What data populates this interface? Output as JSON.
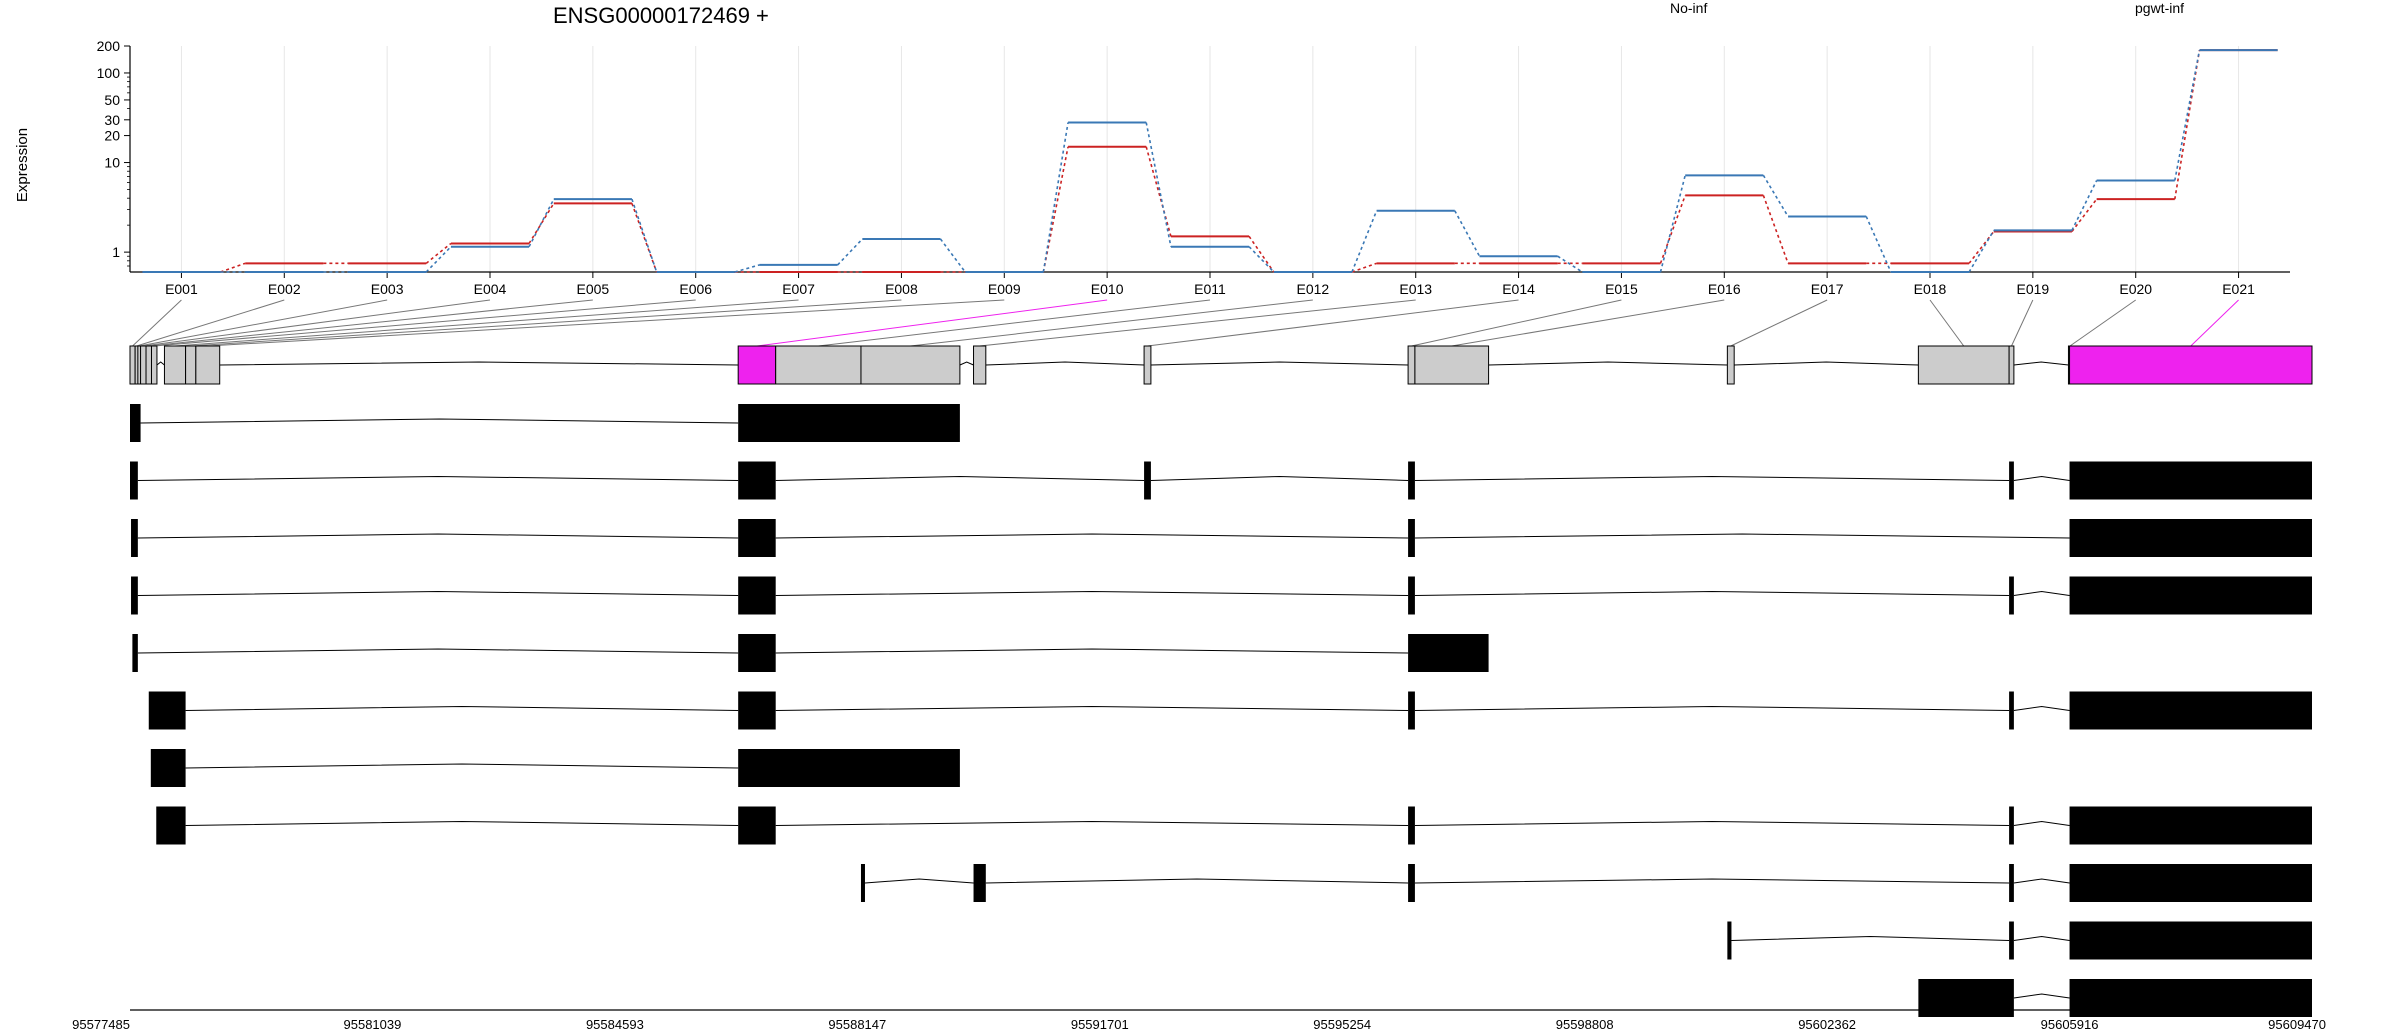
{
  "chart_data": {
    "type": "line",
    "title": "ENSG00000172469 +",
    "ylabel": "Expression",
    "y_scale": "log",
    "ylim": [
      0.6,
      200
    ],
    "y_ticks": [
      {
        "value": 1,
        "label": "1"
      },
      {
        "value": 10,
        "label": "10"
      },
      {
        "value": 20,
        "label": "20"
      },
      {
        "value": 30,
        "label": "30"
      },
      {
        "value": 50,
        "label": "50"
      },
      {
        "value": 100,
        "label": "100"
      },
      {
        "value": 200,
        "label": "200"
      }
    ],
    "categories": [
      "E001",
      "E002",
      "E003",
      "E004",
      "E005",
      "E006",
      "E007",
      "E008",
      "E009",
      "E010",
      "E011",
      "E012",
      "E013",
      "E014",
      "E015",
      "E016",
      "E017",
      "E018",
      "E019",
      "E020",
      "E021"
    ],
    "series": [
      {
        "name": "No-inf",
        "color": "#cc2222",
        "values": [
          0.6,
          0.75,
          0.75,
          1.25,
          3.5,
          0.6,
          0.6,
          0.6,
          0.6,
          15,
          1.5,
          0.6,
          0.75,
          0.75,
          0.75,
          4.3,
          0.75,
          0.75,
          1.7,
          3.9,
          180
        ]
      },
      {
        "name": "pgwt-inf",
        "color": "#3a78b5",
        "values": [
          0.6,
          0.6,
          0.6,
          1.15,
          3.9,
          0.6,
          0.72,
          1.4,
          0.6,
          28,
          1.15,
          0.6,
          2.9,
          0.9,
          0.6,
          7.2,
          2.5,
          0.6,
          1.75,
          6.3,
          180
        ]
      }
    ],
    "genomic_axis": {
      "start": 95577485,
      "end": 95609470,
      "tick_labels": [
        "95577485",
        "95581039",
        "95584593",
        "95588147",
        "95591701",
        "95595254",
        "95598808",
        "95602362",
        "95605916",
        "95609470"
      ]
    },
    "exon_bins": [
      {
        "id": "E001",
        "start": 95577485,
        "end": 95577560,
        "highlight": false
      },
      {
        "id": "E002",
        "start": 95577560,
        "end": 95577600,
        "highlight": false
      },
      {
        "id": "E003",
        "start": 95577600,
        "end": 95577640,
        "highlight": false
      },
      {
        "id": "E004",
        "start": 95577640,
        "end": 95577720,
        "highlight": false
      },
      {
        "id": "E005",
        "start": 95577720,
        "end": 95577800,
        "highlight": false
      },
      {
        "id": "E006",
        "start": 95577800,
        "end": 95577880,
        "highlight": false
      },
      {
        "id": "E007",
        "start": 95577990,
        "end": 95578300,
        "highlight": false
      },
      {
        "id": "E008",
        "start": 95578300,
        "end": 95578450,
        "highlight": false
      },
      {
        "id": "E009",
        "start": 95578450,
        "end": 95578800,
        "highlight": false
      },
      {
        "id": "E010",
        "start": 95586400,
        "end": 95586950,
        "highlight": true
      },
      {
        "id": "E011",
        "start": 95586950,
        "end": 95588200,
        "highlight": false
      },
      {
        "id": "E012",
        "start": 95588200,
        "end": 95589650,
        "highlight": false
      },
      {
        "id": "E013",
        "start": 95589850,
        "end": 95590030,
        "highlight": false
      },
      {
        "id": "E014",
        "start": 95592350,
        "end": 95592450,
        "highlight": false
      },
      {
        "id": "E015",
        "start": 95596220,
        "end": 95596320,
        "highlight": false
      },
      {
        "id": "E016",
        "start": 95596320,
        "end": 95597400,
        "highlight": false
      },
      {
        "id": "E017",
        "start": 95600900,
        "end": 95601000,
        "highlight": false
      },
      {
        "id": "E018",
        "start": 95603700,
        "end": 95605030,
        "highlight": false
      },
      {
        "id": "E019",
        "start": 95605030,
        "end": 95605100,
        "highlight": false
      },
      {
        "id": "E020",
        "start": 95605900,
        "end": 95605916,
        "highlight": false
      },
      {
        "id": "E021",
        "start": 95605916,
        "end": 95609470,
        "highlight": true
      }
    ],
    "transcripts": [
      {
        "exons": [
          [
            95577485,
            95577640
          ],
          [
            95586400,
            95589650
          ]
        ]
      },
      {
        "exons": [
          [
            95577485,
            95577600
          ],
          [
            95586400,
            95586950
          ],
          [
            95592350,
            95592450
          ],
          [
            95596220,
            95596320
          ],
          [
            95605030,
            95605100
          ],
          [
            95605916,
            95609470
          ]
        ]
      },
      {
        "exons": [
          [
            95577500,
            95577600
          ],
          [
            95586400,
            95586950
          ],
          [
            95596220,
            95596320
          ],
          [
            95605916,
            95609470
          ]
        ]
      },
      {
        "exons": [
          [
            95577500,
            95577600
          ],
          [
            95586400,
            95586950
          ],
          [
            95596220,
            95596320
          ],
          [
            95605030,
            95605100
          ],
          [
            95605916,
            95609470
          ]
        ]
      },
      {
        "exons": [
          [
            95577520,
            95577600
          ],
          [
            95586400,
            95586950
          ],
          [
            95596220,
            95597400
          ]
        ]
      },
      {
        "exons": [
          [
            95577760,
            95578300
          ],
          [
            95586400,
            95586950
          ],
          [
            95596220,
            95596320
          ],
          [
            95605030,
            95605100
          ],
          [
            95605916,
            95609470
          ]
        ]
      },
      {
        "exons": [
          [
            95577790,
            95578300
          ],
          [
            95586400,
            95589650
          ]
        ]
      },
      {
        "exons": [
          [
            95577870,
            95578300
          ],
          [
            95586400,
            95586950
          ],
          [
            95596220,
            95596320
          ],
          [
            95605030,
            95605100
          ],
          [
            95605916,
            95609470
          ]
        ]
      },
      {
        "exons": [
          [
            95588200,
            95588230
          ],
          [
            95589850,
            95590030
          ],
          [
            95596220,
            95596320
          ],
          [
            95605030,
            95605100
          ],
          [
            95605916,
            95609470
          ]
        ]
      },
      {
        "exons": [
          [
            95600900,
            95600960
          ],
          [
            95605030,
            95605100
          ],
          [
            95605916,
            95609470
          ]
        ]
      },
      {
        "exons": [
          [
            95603700,
            95605100
          ],
          [
            95605916,
            95609470
          ]
        ]
      }
    ],
    "colors": {
      "highlight": "#ee22ee",
      "bin": "#cccccc",
      "exon": "#000000"
    },
    "grid": true,
    "legend_position": "top"
  }
}
